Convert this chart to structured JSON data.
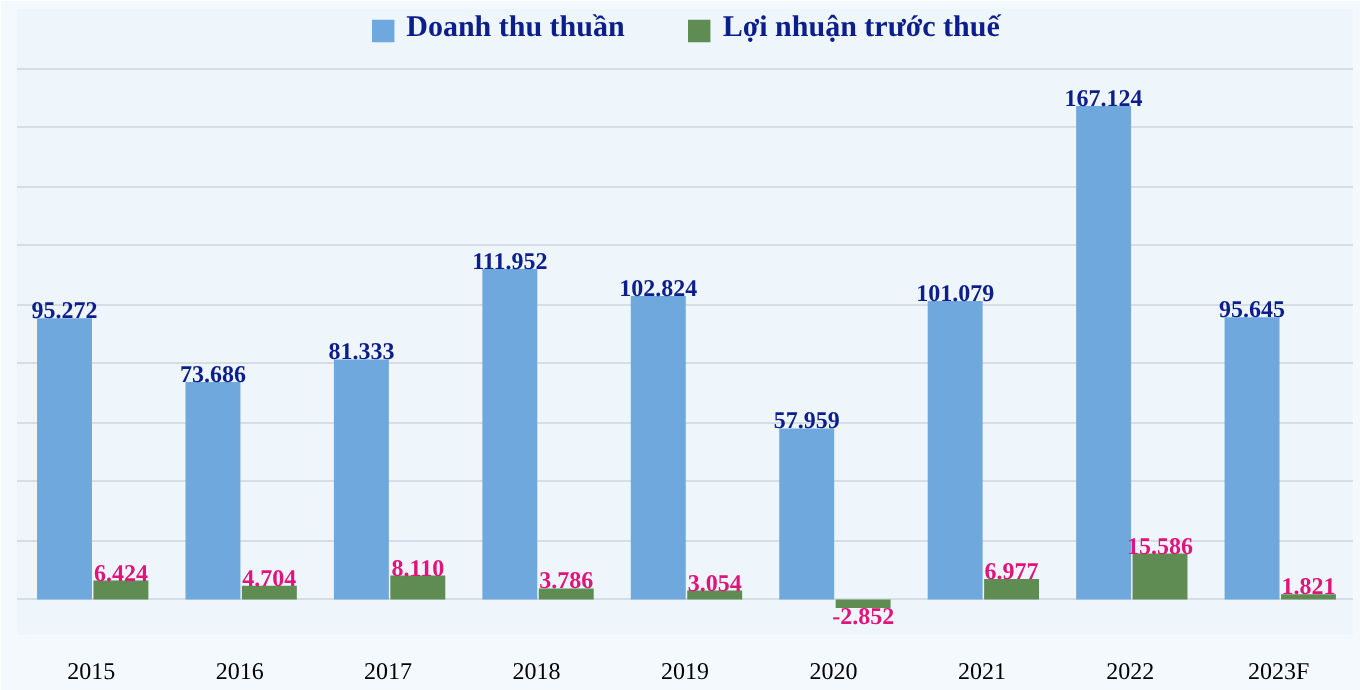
{
  "chart_data": {
    "type": "bar",
    "categories": [
      "2015",
      "2016",
      "2017",
      "2018",
      "2019",
      "2020",
      "2021",
      "2022",
      "2023F"
    ],
    "series": [
      {
        "name": "Doanh thu thuần",
        "color": "#6fa8dc",
        "values": [
          95.272,
          73.686,
          81.333,
          111.952,
          102.824,
          57.959,
          101.079,
          167.124,
          95.645
        ],
        "value_labels": [
          "95.272",
          "73.686",
          "81.333",
          "111.952",
          "102.824",
          "57.959",
          "101.079",
          "167.124",
          "95.645"
        ]
      },
      {
        "name": "Lợi nhuận trước thuế",
        "color": "#5e8c52",
        "values": [
          6.424,
          4.704,
          8.11,
          3.786,
          3.054,
          -2.852,
          6.977,
          15.586,
          1.821
        ],
        "value_labels": [
          "6.424",
          "4.704",
          "8.110",
          "3.786",
          "3.054",
          "-2.852",
          "6.977",
          "15.586",
          "1.821"
        ]
      }
    ],
    "ylim": [
      -12,
      200
    ],
    "yticks": [
      {
        "value": 0,
        "label": null
      },
      {
        "value": 20,
        "label": null
      },
      {
        "value": 40,
        "label": null
      },
      {
        "value": 60,
        "label": null
      },
      {
        "value": 80,
        "label": null
      },
      {
        "value": 100,
        "label": null
      },
      {
        "value": 120,
        "label": null
      },
      {
        "value": 140,
        "label": null
      },
      {
        "value": 160,
        "label": null
      },
      {
        "value": 180,
        "label": null
      }
    ],
    "grid": "y",
    "legend": "top",
    "tick_labels": "x"
  }
}
